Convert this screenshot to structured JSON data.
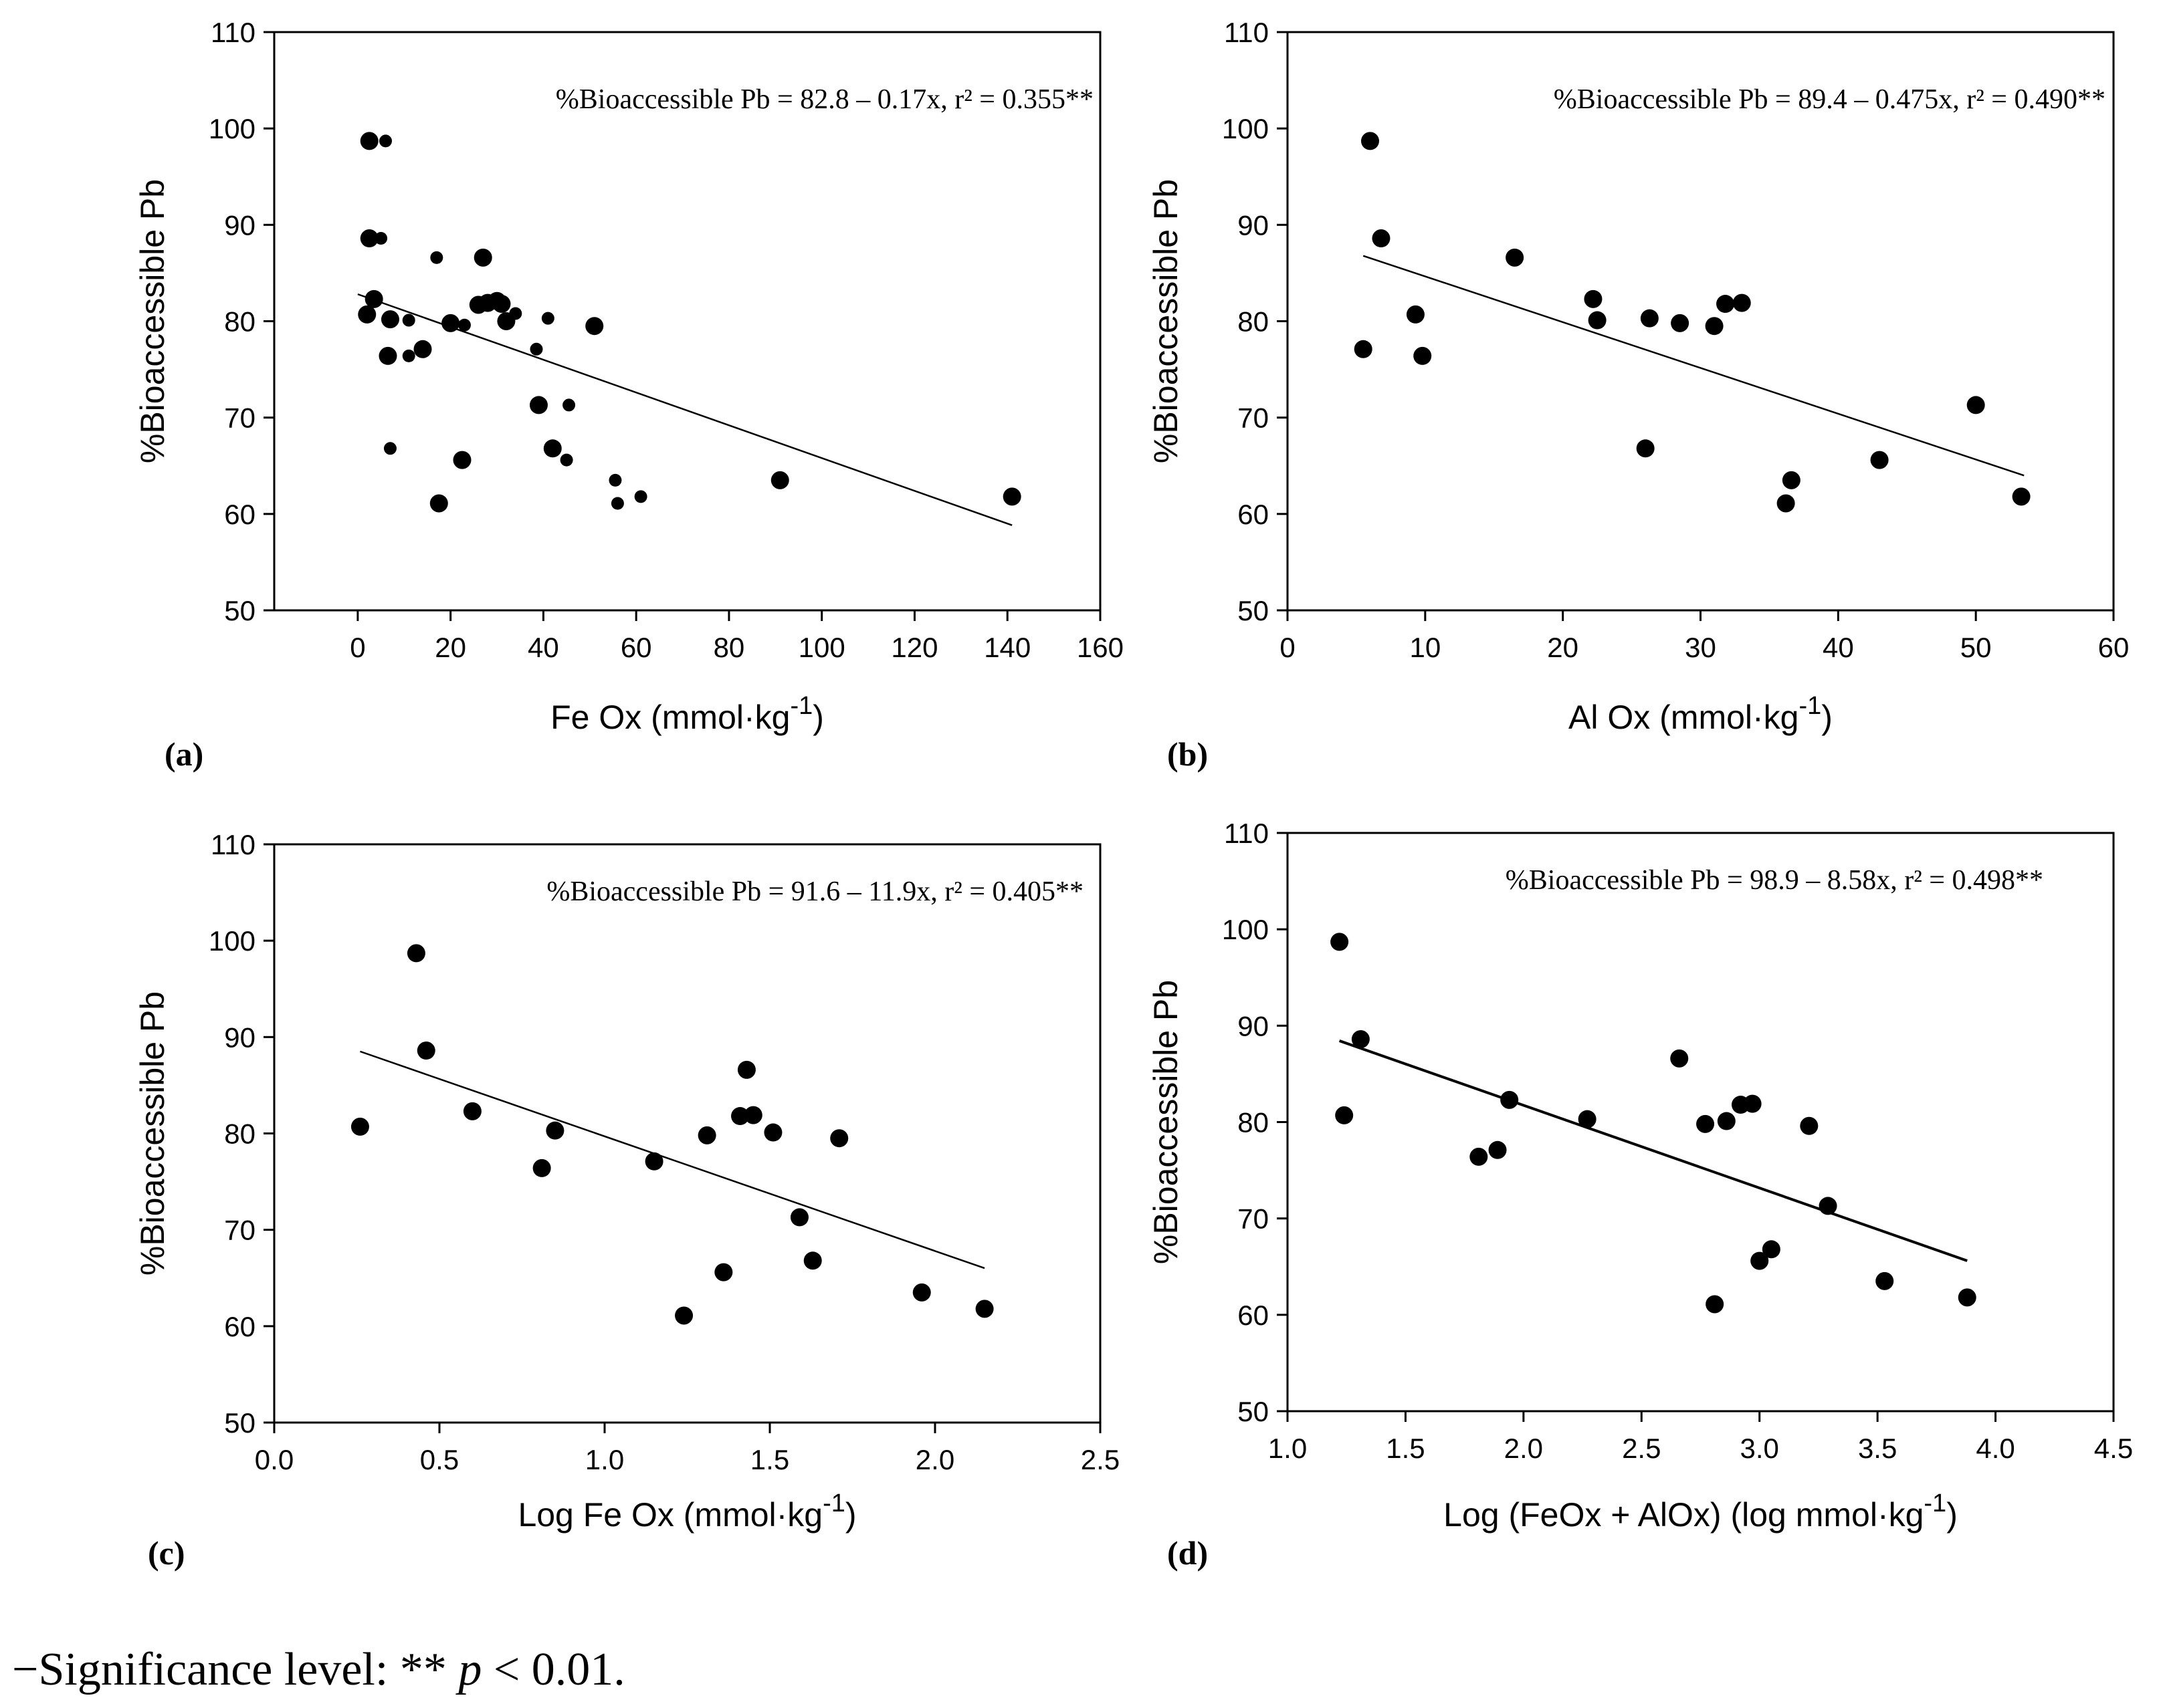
{
  "chart_data": [
    {
      "type": "scatter",
      "panel_label": "(a)",
      "panel_letter": "a",
      "xlabel": "Fe Ox (mmol·kg",
      "xlabel_sup": "-1",
      "xlabel_end": ")",
      "ylabel": "%Bioaccessible Pb",
      "xlim": [
        -18,
        160
      ],
      "ylim": [
        50,
        110
      ],
      "xticks": [
        0,
        20,
        40,
        60,
        80,
        100,
        120,
        140,
        160
      ],
      "xtick_labels": [
        "0",
        "20",
        "40",
        "60",
        "80",
        "100",
        "120",
        "140",
        "160"
      ],
      "yticks": [
        50,
        60,
        70,
        80,
        90,
        100,
        110
      ],
      "equation": "%Bioaccessible Pb = 82.8 – 0.17x, r² = 0.355**",
      "regression": {
        "intercept": 82.8,
        "slope": -0.17,
        "x_range": [
          0,
          141
        ]
      },
      "series": [
        {
          "name": "large",
          "size": "large",
          "x": [
            2.5,
            2.5,
            3.5,
            2,
            7,
            6.5,
            14,
            27,
            26,
            28,
            30,
            31,
            32,
            20,
            51,
            39,
            42,
            22.5,
            17.5,
            91,
            141
          ],
          "y": [
            98.7,
            88.6,
            82.3,
            80.7,
            80.2,
            76.4,
            77.1,
            86.6,
            81.7,
            81.9,
            82.1,
            81.8,
            80.0,
            79.8,
            79.5,
            71.3,
            66.8,
            65.6,
            61.1,
            63.5,
            61.8
          ]
        },
        {
          "name": "small",
          "size": "small",
          "x": [
            6,
            5,
            17,
            11,
            11,
            23,
            7,
            41,
            34,
            38.5,
            45.5,
            45,
            55.5,
            56,
            61
          ],
          "y": [
            98.7,
            88.6,
            86.6,
            80.1,
            76.4,
            79.6,
            66.8,
            80.3,
            80.8,
            77.1,
            71.3,
            65.6,
            63.5,
            61.1,
            61.8
          ]
        }
      ]
    },
    {
      "type": "scatter",
      "panel_label": "(b)",
      "panel_letter": "b",
      "xlabel": "Al Ox (mmol·kg",
      "xlabel_sup": "-1",
      "xlabel_end": ")",
      "ylabel": "%Bioaccessible Pb",
      "xlim": [
        0,
        60
      ],
      "ylim": [
        50,
        110
      ],
      "xticks": [
        0,
        10,
        20,
        30,
        40,
        50,
        60
      ],
      "xtick_labels": [
        "0",
        "10",
        "20",
        "30",
        "40",
        "50",
        "60"
      ],
      "yticks": [
        50,
        60,
        70,
        80,
        90,
        100,
        110
      ],
      "equation": "%Bioaccessible Pb = 89.4 – 0.475x, r² = 0.490**",
      "regression": {
        "intercept": 89.4,
        "slope": -0.475,
        "x_range": [
          5.5,
          53.5
        ]
      },
      "series": [
        {
          "name": "points",
          "size": "large",
          "x": [
            6,
            6.8,
            5.5,
            9.3,
            9.8,
            16.5,
            22.2,
            22.5,
            26.3,
            28.5,
            31,
            31.8,
            33,
            26,
            36.2,
            36.6,
            43,
            50,
            53.3
          ],
          "y": [
            98.7,
            88.6,
            77.1,
            80.7,
            76.4,
            86.6,
            82.3,
            80.1,
            80.3,
            79.8,
            79.5,
            81.8,
            81.9,
            66.8,
            61.1,
            63.5,
            65.6,
            71.3,
            61.8
          ]
        }
      ]
    },
    {
      "type": "scatter",
      "panel_label": "(c)",
      "panel_letter": "c",
      "xlabel": "Log Fe Ox (mmol·kg",
      "xlabel_sup": "-1",
      "xlabel_end": ")",
      "ylabel": "%Bioaccessible Pb",
      "xlim": [
        0.0,
        2.5
      ],
      "ylim": [
        50,
        110
      ],
      "xticks": [
        0.0,
        0.5,
        1.0,
        1.5,
        2.0,
        2.5
      ],
      "xtick_labels": [
        "0.0",
        "0.5",
        "1.0",
        "1.5",
        "2.0",
        "2.5"
      ],
      "yticks": [
        50,
        60,
        70,
        80,
        90,
        100,
        110
      ],
      "equation": "%Bioaccessible Pb = 91.6 – 11.9x, r² = 0.405**",
      "regression": {
        "intercept": 91.6,
        "slope": -11.9,
        "x_range": [
          0.26,
          2.15
        ]
      },
      "series": [
        {
          "name": "points",
          "size": "large",
          "x": [
            0.26,
            0.43,
            0.46,
            0.6,
            0.85,
            0.81,
            1.15,
            1.31,
            1.41,
            1.43,
            1.45,
            1.51,
            1.71,
            1.59,
            1.63,
            1.36,
            1.24,
            1.96,
            2.15
          ],
          "y": [
            80.7,
            98.7,
            88.6,
            82.3,
            80.3,
            76.4,
            77.1,
            79.8,
            81.8,
            86.6,
            81.9,
            80.1,
            79.5,
            71.3,
            66.8,
            65.6,
            61.1,
            63.5,
            61.8
          ]
        }
      ]
    },
    {
      "type": "scatter",
      "panel_label": "(d)",
      "panel_letter": "d",
      "xlabel": "Log (FeOx + AlOx) (log mmol·kg",
      "xlabel_sup": "-1",
      "xlabel_end": ")",
      "ylabel": "%Bioaccessible Pb",
      "xlim": [
        1.0,
        4.5
      ],
      "ylim": [
        50,
        110
      ],
      "xticks": [
        1.0,
        1.5,
        2.0,
        2.5,
        3.0,
        3.5,
        4.0,
        4.5
      ],
      "xtick_labels": [
        "1.0",
        "1.5",
        "2.0",
        "2.5",
        "3.0",
        "3.5",
        "4.0",
        "4.5"
      ],
      "yticks": [
        50,
        60,
        70,
        80,
        90,
        100,
        110
      ],
      "equation": "%Bioaccessible Pb = 98.9 – 8.58x, r² = 0.498**",
      "regression": {
        "intercept": 98.9,
        "slope": -8.58,
        "x_range": [
          1.22,
          3.88
        ]
      },
      "series": [
        {
          "name": "points",
          "size": "large",
          "x": [
            1.22,
            1.31,
            1.24,
            1.94,
            1.81,
            1.89,
            2.27,
            2.66,
            2.77,
            2.86,
            2.92,
            2.97,
            3.21,
            3.29,
            3.05,
            3.0,
            2.81,
            3.53,
            3.88
          ],
          "y": [
            98.7,
            88.6,
            80.7,
            82.3,
            76.4,
            77.1,
            80.3,
            86.6,
            79.8,
            80.1,
            81.8,
            81.9,
            79.6,
            71.3,
            66.8,
            65.6,
            61.1,
            63.5,
            61.8
          ]
        }
      ]
    }
  ],
  "footnote": {
    "prefix": "−Significance level: ** ",
    "p": "p",
    "suffix": " < 0.01."
  }
}
